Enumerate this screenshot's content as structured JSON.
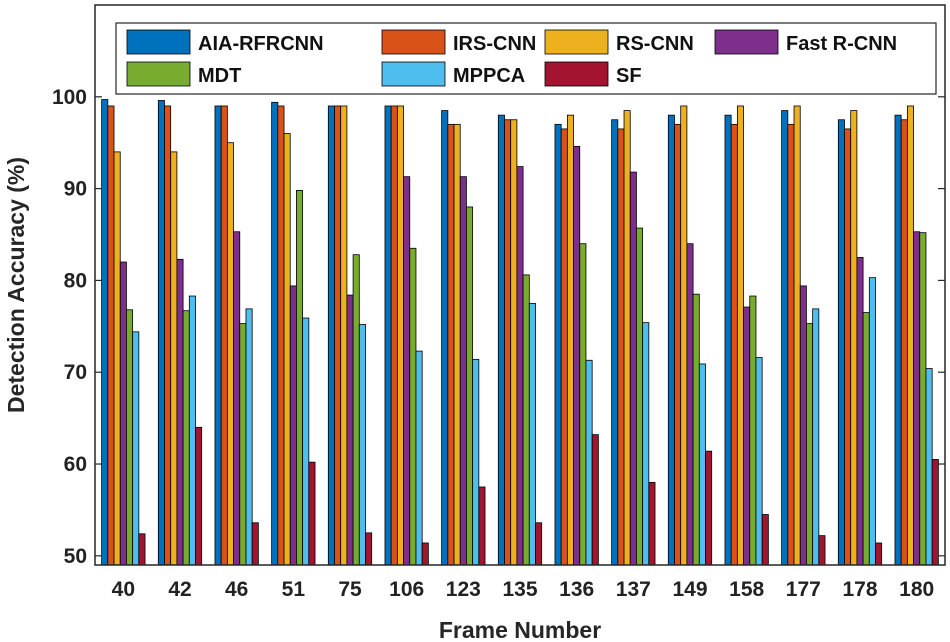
{
  "chart_data": {
    "type": "bar",
    "title": "",
    "xlabel": "Frame Number",
    "ylabel": "Detection Accuracy (%)",
    "ylim": [
      49,
      110
    ],
    "yticks": [
      50,
      60,
      70,
      80,
      90,
      100
    ],
    "grid": false,
    "legend_position": "top",
    "categories": [
      "40",
      "42",
      "46",
      "51",
      "75",
      "106",
      "123",
      "135",
      "136",
      "137",
      "149",
      "158",
      "177",
      "178",
      "180"
    ],
    "series": [
      {
        "name": "AIA-RFRCNN",
        "color": "#0072BD",
        "values": [
          99.7,
          99.6,
          99.0,
          99.4,
          99.0,
          99.0,
          98.5,
          98.0,
          97.0,
          97.5,
          98.0,
          98.0,
          98.5,
          97.5,
          98.0
        ]
      },
      {
        "name": "IRS-CNN",
        "color": "#D95319",
        "values": [
          99.0,
          99.0,
          99.0,
          99.0,
          99.0,
          99.0,
          97.0,
          97.5,
          96.5,
          96.5,
          97.0,
          97.0,
          97.0,
          96.5,
          97.5
        ]
      },
      {
        "name": "RS-CNN",
        "color": "#EDB120",
        "values": [
          94.0,
          94.0,
          95.0,
          96.0,
          99.0,
          99.0,
          97.0,
          97.5,
          98.0,
          98.5,
          99.0,
          99.0,
          99.0,
          98.5,
          99.0
        ]
      },
      {
        "name": "Fast R-CNN",
        "color": "#7E2F8E",
        "values": [
          82.0,
          82.3,
          85.3,
          79.4,
          78.4,
          91.3,
          91.3,
          92.4,
          94.6,
          91.8,
          84.0,
          77.1,
          79.4,
          82.5,
          85.3
        ]
      },
      {
        "name": "MDT",
        "color": "#77AC30",
        "values": [
          76.8,
          76.7,
          75.3,
          89.8,
          82.8,
          83.5,
          88.0,
          80.6,
          84.0,
          85.7,
          78.5,
          78.3,
          75.3,
          76.5,
          85.2
        ]
      },
      {
        "name": "MPPCA",
        "color": "#4DBEEE",
        "values": [
          74.4,
          78.3,
          76.9,
          75.9,
          75.2,
          72.3,
          71.4,
          77.5,
          71.3,
          75.4,
          70.9,
          71.6,
          76.9,
          80.3,
          70.4
        ]
      },
      {
        "name": "SF",
        "color": "#A2142F",
        "values": [
          52.4,
          64.0,
          53.6,
          60.2,
          52.5,
          51.4,
          57.5,
          53.6,
          63.2,
          58.0,
          61.4,
          54.5,
          52.2,
          51.4,
          60.5
        ]
      }
    ]
  }
}
